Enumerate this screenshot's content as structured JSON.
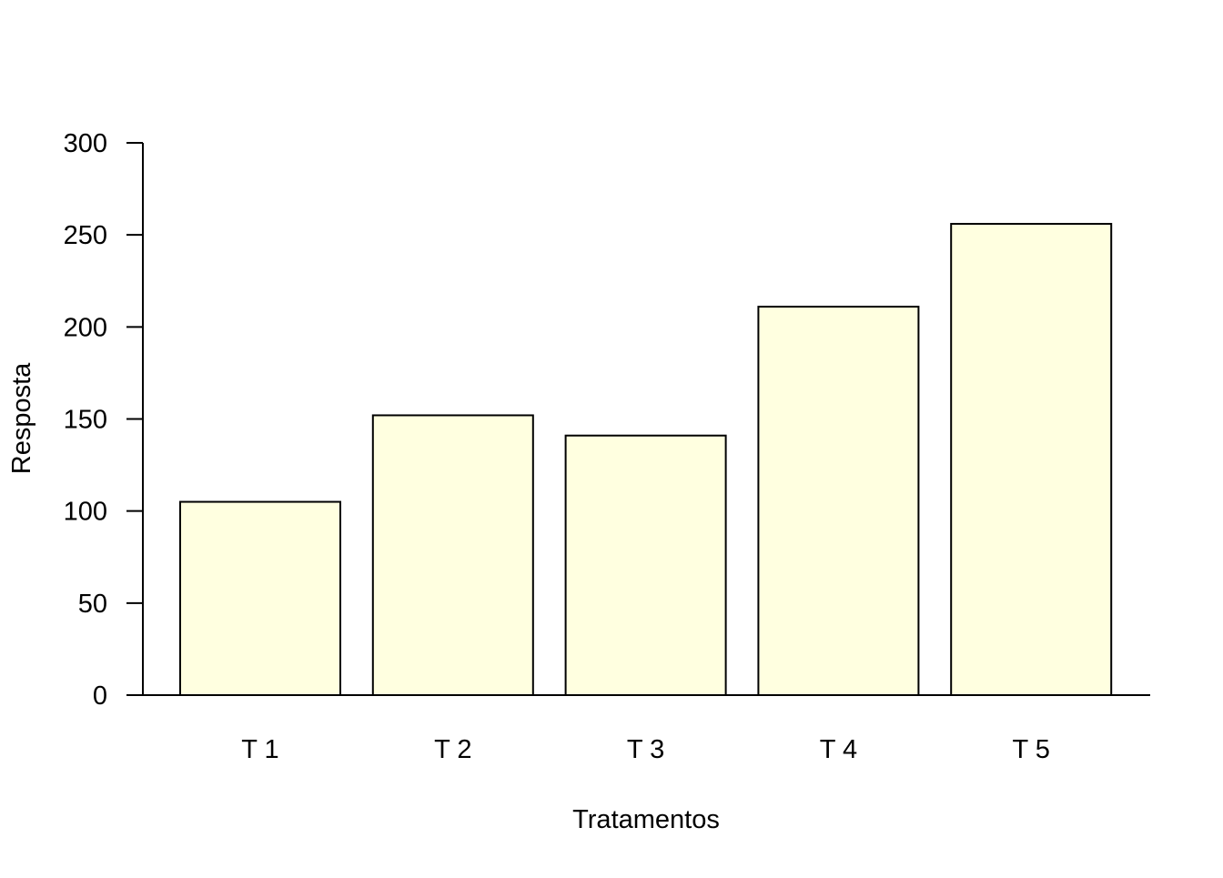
{
  "chart_data": {
    "type": "bar",
    "categories": [
      "T 1",
      "T 2",
      "T 3",
      "T 4",
      "T 5"
    ],
    "values": [
      105,
      152,
      141,
      211,
      256
    ],
    "title": "",
    "xlabel": "Tratamentos",
    "ylabel": "Resposta",
    "ylim": [
      0,
      300
    ],
    "yticks": [
      0,
      50,
      100,
      150,
      200,
      250,
      300
    ],
    "ytick_labels": [
      "0",
      "50",
      "100",
      "150",
      "200",
      "250",
      "300"
    ],
    "grid": false,
    "legend": "none",
    "bar_color": "#ffffe0",
    "bar_edge_color": "#000000"
  }
}
